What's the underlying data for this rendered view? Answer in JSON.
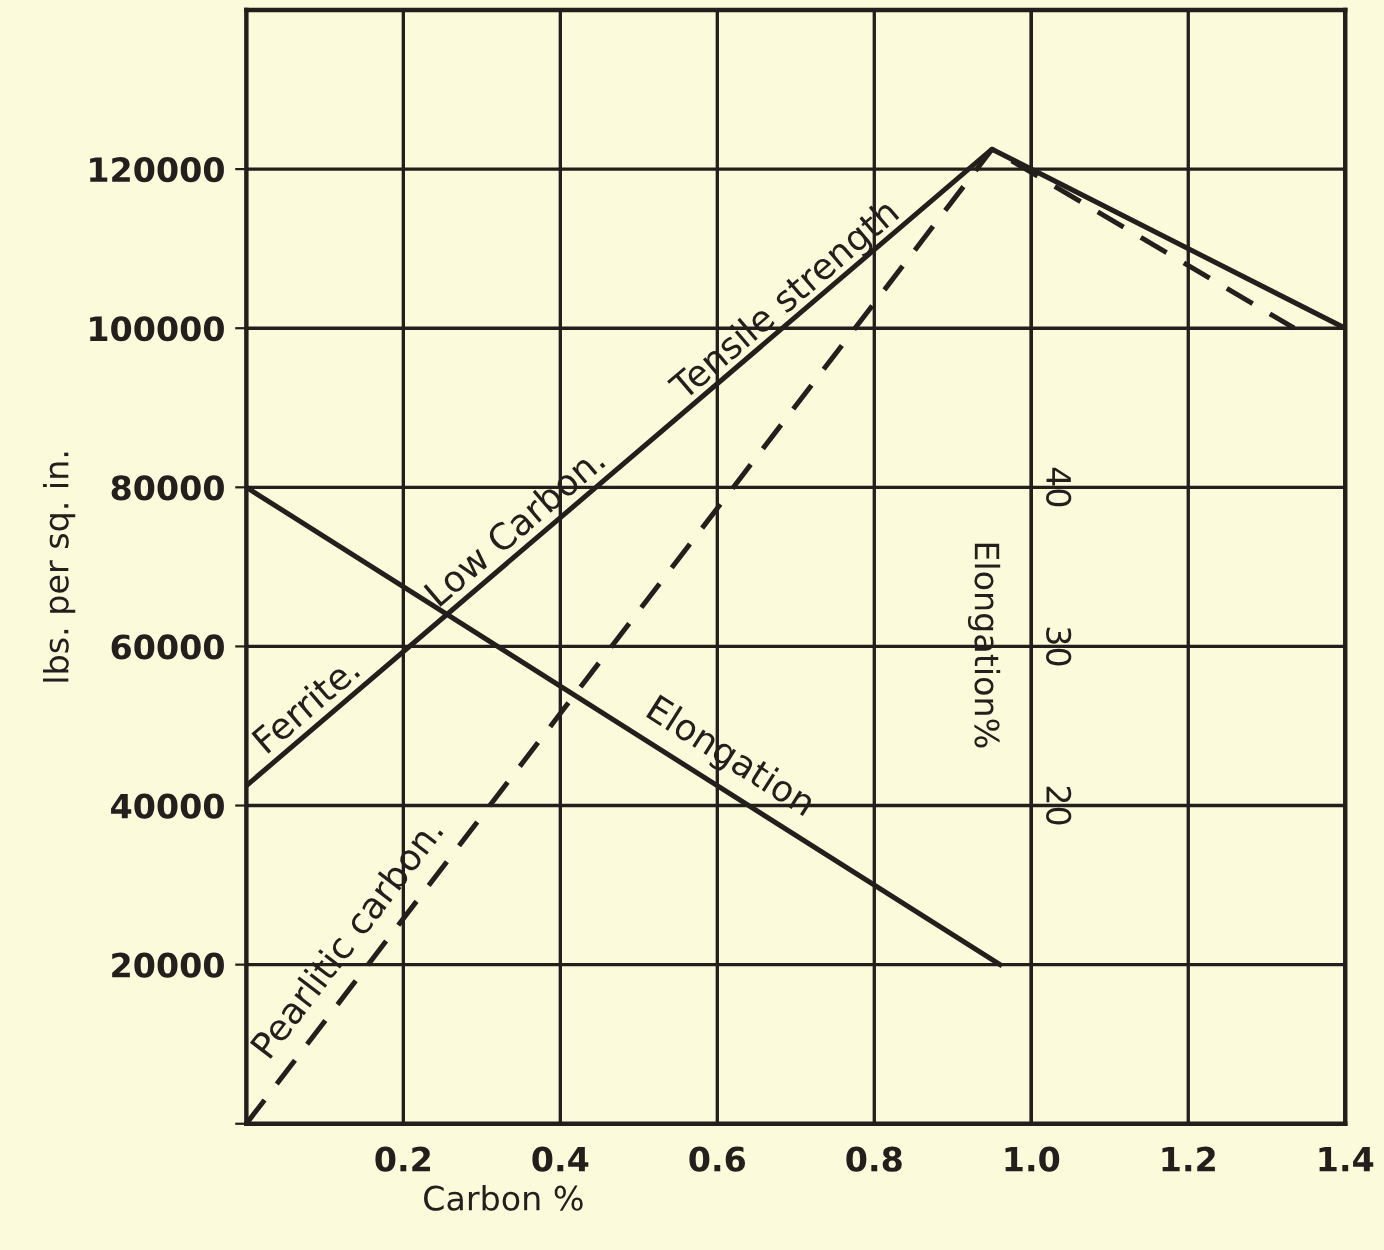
{
  "chart_data": {
    "type": "line",
    "xlabel": "Carbon %",
    "ylabel": "lbs. per sq. in.",
    "y2label": "Elongation%",
    "xlim": [
      0,
      1.4
    ],
    "ylim": [
      0,
      140000
    ],
    "y2lim": [
      0,
      70
    ],
    "xticks": [
      {
        "value": 0,
        "label": null
      },
      0.2,
      0.4,
      0.6,
      0.8,
      {
        "value": 1.0,
        "label": "1.0"
      },
      1.2,
      1.4
    ],
    "yticks": [
      {
        "value": 0,
        "label": null
      },
      20000,
      40000,
      60000,
      80000,
      100000,
      120000
    ],
    "y2ticks": [
      20,
      30,
      40
    ],
    "grid": true,
    "series": [
      {
        "name": "Tensile strength",
        "color": "#231f1c",
        "line_style": "solid",
        "x": [
          0,
          0.95,
          1.4
        ],
        "values": [
          42500,
          122500,
          100000
        ]
      },
      {
        "name": "Pearlitic carbon.",
        "color": "#231f1c",
        "line_style": "dashed",
        "x": [
          0,
          0.95,
          1.335
        ],
        "values": [
          0,
          122500,
          100000
        ]
      },
      {
        "name": "Elongation",
        "color": "#231f1c",
        "line_style": "solid",
        "axis": "y2",
        "x": [
          0,
          0.96
        ],
        "values": [
          40,
          10
        ]
      }
    ],
    "annotations": [
      "Ferrite.",
      "Low Carbon."
    ]
  }
}
